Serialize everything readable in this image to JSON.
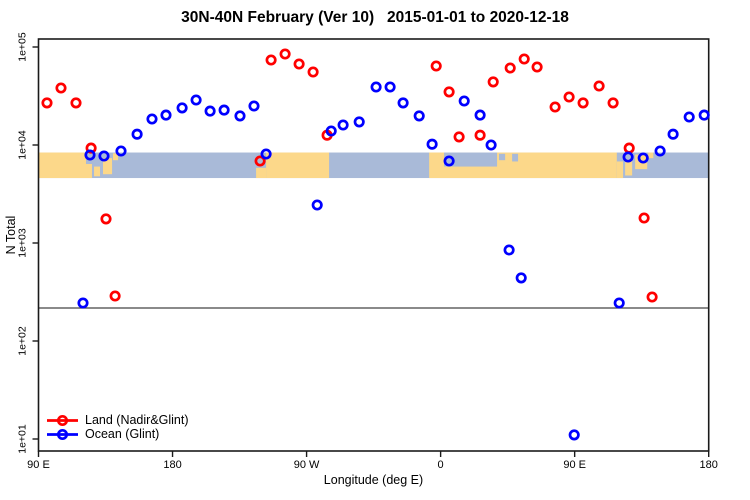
{
  "title": "30N-40N February (Ver 10)   2015-01-01 to 2020-12-18",
  "chart_data": {
    "type": "scatter",
    "title": "30N-40N February (Ver 10)   2015-01-01 to 2020-12-18",
    "xlabel": "Longitude (deg E)",
    "ylabel": "N Total",
    "x_axis": {
      "note": "longitude wraps eastward; axis spans 450 deg starting at 90E",
      "range_t": [
        0,
        450
      ],
      "ticks": [
        {
          "t": 0,
          "label": "90 E"
        },
        {
          "t": 90,
          "label": "180"
        },
        {
          "t": 180,
          "label": "90 W"
        },
        {
          "t": 270,
          "label": "0"
        },
        {
          "t": 360,
          "label": "90 E"
        },
        {
          "t": 450,
          "label": "180"
        }
      ]
    },
    "y_axis": {
      "scale": "log10",
      "range": [
        10,
        100000
      ],
      "ticks": [
        {
          "n": 100000,
          "label": "1e+05"
        },
        {
          "n": 10000,
          "label": "1e+04"
        },
        {
          "n": 1000,
          "label": "1e+03"
        },
        {
          "n": 100,
          "label": "1e+02"
        },
        {
          "n": 10,
          "label": "1e+01"
        }
      ]
    },
    "reference_line": {
      "n": 217,
      "color": "#444444"
    },
    "series": [
      {
        "name": "Land (Nadir&Glint)",
        "color": "#ff0000",
        "points": [
          [
            5.7,
            26900
          ],
          [
            15.1,
            38200
          ],
          [
            25.2,
            26900
          ],
          [
            35.3,
            9300
          ],
          [
            45.3,
            1760
          ],
          [
            51.4,
            288
          ],
          [
            148.8,
            6870
          ],
          [
            156.2,
            73600
          ],
          [
            165.6,
            84900
          ],
          [
            175.0,
            67100
          ],
          [
            184.4,
            55600
          ],
          [
            193.8,
            12600
          ],
          [
            267.0,
            64000
          ],
          [
            275.7,
            34800
          ],
          [
            282.4,
            12100
          ],
          [
            296.5,
            12600
          ],
          [
            305.3,
            44000
          ],
          [
            316.7,
            61100
          ],
          [
            326.1,
            75500
          ],
          [
            334.8,
            62500
          ],
          [
            346.9,
            24400
          ],
          [
            356.3,
            30900
          ],
          [
            365.7,
            26900
          ],
          [
            376.4,
            40000
          ],
          [
            385.8,
            26900
          ],
          [
            396.6,
            9300
          ],
          [
            406.6,
            1800
          ],
          [
            412.0,
            281
          ]
        ]
      },
      {
        "name": "Ocean (Glint)",
        "color": "#0000ff",
        "points": [
          [
            29.9,
            244
          ],
          [
            34.6,
            7910
          ],
          [
            44.0,
            7730
          ],
          [
            55.4,
            8690
          ],
          [
            66.2,
            12900
          ],
          [
            76.2,
            18400
          ],
          [
            85.6,
            20200
          ],
          [
            96.4,
            23900
          ],
          [
            105.8,
            28800
          ],
          [
            115.2,
            22200
          ],
          [
            124.6,
            22700
          ],
          [
            135.3,
            19800
          ],
          [
            144.7,
            25000
          ],
          [
            152.8,
            8090
          ],
          [
            187.1,
            2440
          ],
          [
            196.5,
            13900
          ],
          [
            204.5,
            16000
          ],
          [
            215.3,
            17200
          ],
          [
            226.7,
            39100
          ],
          [
            236.1,
            39100
          ],
          [
            244.8,
            26900
          ],
          [
            255.6,
            19800
          ],
          [
            264.3,
            10200
          ],
          [
            275.7,
            6870
          ],
          [
            285.8,
            28100
          ],
          [
            296.5,
            20200
          ],
          [
            303.9,
            10000
          ],
          [
            316.0,
            849
          ],
          [
            324.1,
            440
          ],
          [
            359.7,
            11
          ],
          [
            389.9,
            244
          ],
          [
            395.9,
            7550
          ],
          [
            406.0,
            7360
          ],
          [
            417.4,
            8690
          ],
          [
            426.1,
            12900
          ],
          [
            436.9,
            19300
          ],
          [
            447.0,
            20200
          ]
        ]
      }
    ],
    "map_strip": {
      "description": "30N-40N latitude strip map drawn across plot",
      "ocean_color": "#a9bad8",
      "land_color": "#fcd88a",
      "n_top": 8380,
      "n_bottom": 4600,
      "land_segments": [
        [
          0,
          31.9,
          0,
          1
        ],
        [
          31.9,
          35.9,
          0.45,
          1
        ],
        [
          37.3,
          41.3,
          0.55,
          0.93
        ],
        [
          43.3,
          49.4,
          0.22,
          0.85
        ],
        [
          50.0,
          53.4,
          0.03,
          0.3
        ],
        [
          146.1,
          152.8,
          0.6,
          1
        ],
        [
          152.8,
          195.1,
          0,
          1
        ],
        [
          262.3,
          388.3,
          0,
          1
        ],
        [
          388.3,
          392.5,
          0.35,
          1
        ],
        [
          393.9,
          398.6,
          0.28,
          0.9
        ],
        [
          400.6,
          408.7,
          0.08,
          0.65
        ],
        [
          409.4,
          412.8,
          0.0,
          0.22
        ]
      ],
      "lakes": [
        [
          272.3,
          307.9,
          0.0,
          0.55
        ],
        [
          309.2,
          313.3,
          0.05,
          0.3
        ],
        [
          318.0,
          322.0,
          0.05,
          0.35
        ]
      ]
    },
    "legend_position": "bottom-left"
  },
  "legend": {
    "items": [
      {
        "label": "Land (Nadir&Glint)",
        "color": "#ff0000"
      },
      {
        "label": "Ocean (Glint)",
        "color": "#0000ff"
      }
    ]
  }
}
